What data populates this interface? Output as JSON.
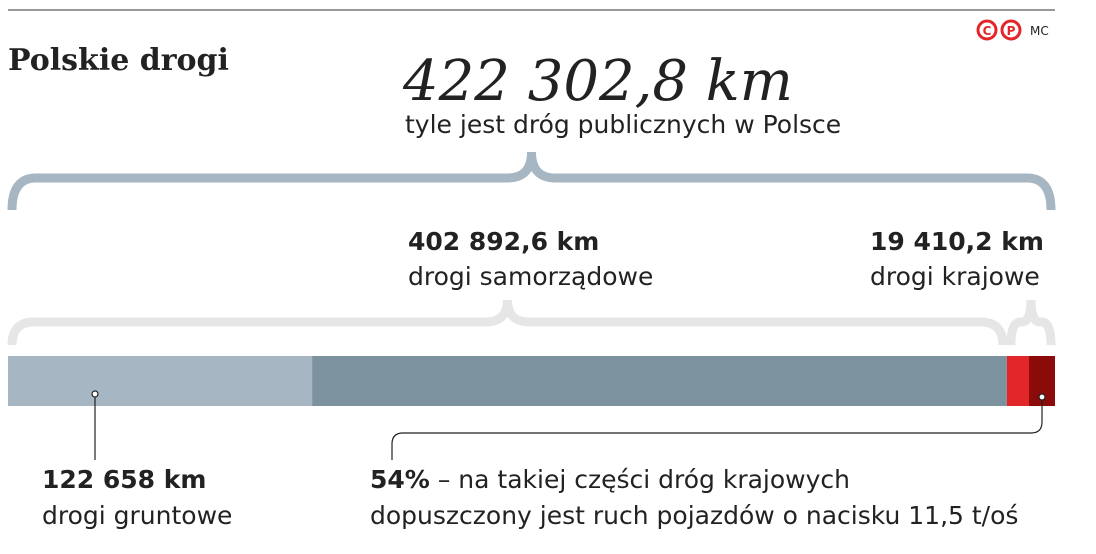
{
  "title": "Polskie drogi",
  "credit": "MC",
  "chart_data": {
    "type": "stacked-bar",
    "xlim": [
      0,
      422302.8
    ],
    "total": {
      "value": 422302.8,
      "label": "422 302,8 km",
      "caption": "tyle jest dróg publicznych w Polsce"
    },
    "groups": [
      {
        "name": "drogi samorządowe",
        "value": 402892.6,
        "label": "402 892,6 km"
      },
      {
        "name": "drogi krajowe",
        "value": 19410.2,
        "label": "19 410,2 km"
      }
    ],
    "segments": [
      {
        "name": "drogi gruntowe",
        "value": 122658,
        "label": "122 658 km",
        "color": "#a6b6c2"
      },
      {
        "value": 280234.6,
        "color": "#7c939f"
      },
      {
        "value": 8928.7,
        "color": "#e3262a"
      },
      {
        "value": 10481.5,
        "color": "#8b0b0b",
        "share": {
          "value": 54,
          "label": "54%"
        },
        "note": [
          "– na takiej części dróg krajowych",
          "dopuszczony jest ruch pojazdów o nacisku 11,5 t/oś"
        ]
      }
    ]
  }
}
